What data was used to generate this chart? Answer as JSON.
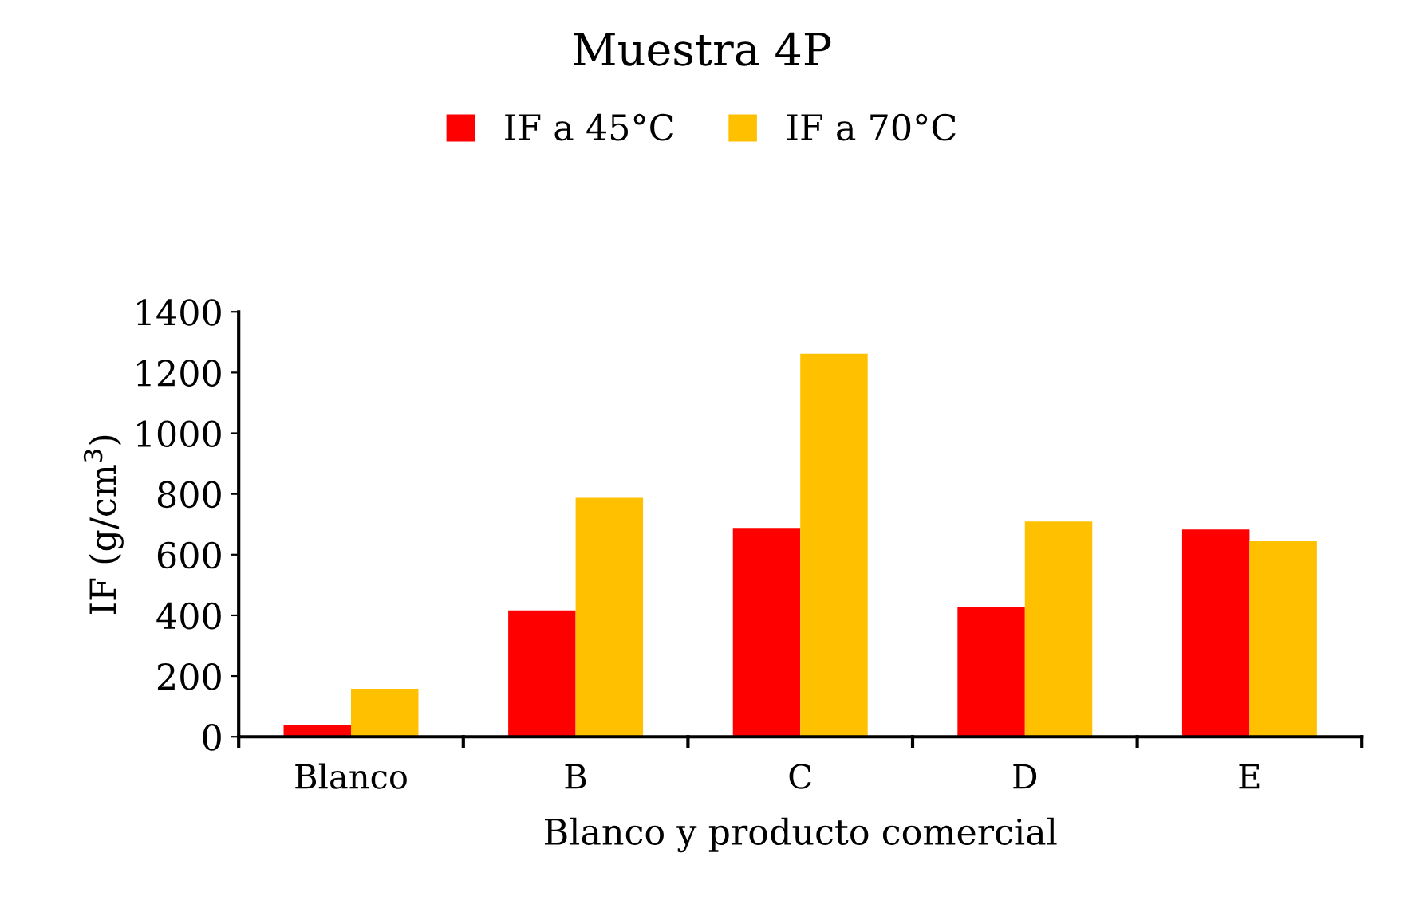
{
  "chart_data": {
    "type": "bar",
    "title": "Muestra 4P",
    "xlabel": "Blanco y producto comercial",
    "ylabel": "IF (g/cm$^{3}$)",
    "categories": [
      "Blanco",
      "B",
      "C",
      "D",
      "E"
    ],
    "series": [
      {
        "name": "IF a 45°C",
        "color": "#ff0000",
        "values": [
          40,
          416,
          688,
          429,
          683
        ]
      },
      {
        "name": "IF a 70°C",
        "color": "#ffc000",
        "values": [
          158,
          787,
          1262,
          709,
          644
        ]
      }
    ],
    "ylim": [
      0,
      1400
    ],
    "yticks": [
      0,
      200,
      400,
      600,
      800,
      1000,
      1200,
      1400
    ],
    "grid": false,
    "legend": "top"
  }
}
